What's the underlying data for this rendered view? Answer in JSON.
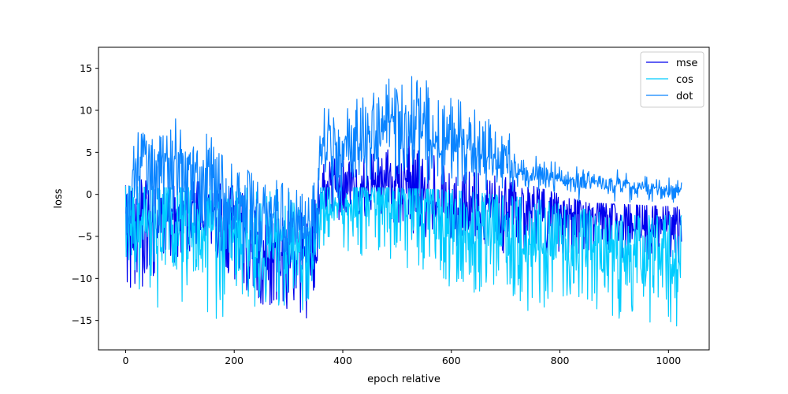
{
  "chart_data": {
    "type": "line",
    "title": "",
    "xlabel": "epoch relative",
    "ylabel": "loss",
    "xlim": [
      -50,
      1075
    ],
    "ylim": [
      -18.5,
      17.5
    ],
    "x_ticks": [
      0,
      200,
      400,
      600,
      800,
      1000
    ],
    "y_ticks": [
      -15,
      -10,
      -5,
      0,
      5,
      10,
      15
    ],
    "grid": false,
    "legend_position": "top-right",
    "x_max": 1024,
    "series": [
      {
        "name": "mse",
        "color": "#0000ee",
        "profile": [
          [
            0,
            -3.0,
            2.5,
            -11.0,
            2.0
          ],
          [
            30,
            -4.0,
            3.0,
            -11.5,
            2.0
          ],
          [
            60,
            -3.0,
            2.5,
            -9.0,
            1.5
          ],
          [
            150,
            -3.0,
            2.5,
            -7.0,
            1.5
          ],
          [
            200,
            -5.0,
            3.0,
            -10.0,
            1.0
          ],
          [
            250,
            -7.5,
            3.0,
            -13.0,
            -2.0
          ],
          [
            300,
            -7.5,
            3.0,
            -14.0,
            -2.0
          ],
          [
            315,
            -8.0,
            3.0,
            -16.5,
            -2.0
          ],
          [
            345,
            -7.0,
            3.0,
            -13.5,
            -2.0
          ],
          [
            360,
            1.0,
            2.0,
            -3.0,
            4.0
          ],
          [
            480,
            1.5,
            2.0,
            -3.0,
            5.0
          ],
          [
            500,
            1.0,
            2.5,
            -4.0,
            8.0
          ],
          [
            600,
            -1.5,
            2.5,
            -6.0,
            3.0
          ],
          [
            700,
            -2.0,
            2.5,
            -7.0,
            2.0
          ],
          [
            850,
            -2.5,
            2.0,
            -7.0,
            -1.0
          ],
          [
            1024,
            -3.5,
            2.0,
            -8.5,
            -1.5
          ]
        ]
      },
      {
        "name": "cos",
        "color": "#00ccff",
        "profile": [
          [
            0,
            -3.5,
            3.0,
            -10.0,
            1.0
          ],
          [
            50,
            -3.0,
            3.5,
            -13.5,
            0.8
          ],
          [
            200,
            -5.0,
            4.0,
            -15.5,
            0.8
          ],
          [
            340,
            -8.0,
            3.0,
            -14.5,
            0.5
          ],
          [
            360,
            -1.5,
            2.0,
            -6.0,
            0.8
          ],
          [
            480,
            -1.0,
            2.5,
            -8.0,
            0.8
          ],
          [
            600,
            -3.0,
            3.5,
            -11.0,
            0.5
          ],
          [
            750,
            -6.0,
            3.5,
            -14.0,
            -0.5
          ],
          [
            900,
            -7.0,
            3.0,
            -15.5,
            -2.5
          ],
          [
            1024,
            -7.0,
            3.0,
            -16.5,
            -2.5
          ]
        ]
      },
      {
        "name": "dot",
        "color": "#0a84ff",
        "profile": [
          [
            0,
            -1.5,
            2.0,
            -6.0,
            2.8
          ],
          [
            30,
            3.5,
            2.5,
            -4.0,
            8.8
          ],
          [
            120,
            4.0,
            2.5,
            -4.0,
            9.8
          ],
          [
            200,
            -1.0,
            2.5,
            -8.0,
            4.0
          ],
          [
            300,
            -3.0,
            2.0,
            -9.0,
            1.0
          ],
          [
            350,
            -4.0,
            2.0,
            -10.0,
            1.5
          ],
          [
            360,
            5.5,
            2.5,
            -2.0,
            12.5
          ],
          [
            470,
            6.0,
            2.5,
            -2.0,
            12.0
          ],
          [
            480,
            10.0,
            2.5,
            2.0,
            15.8
          ],
          [
            540,
            8.0,
            2.5,
            0.0,
            14.0
          ],
          [
            700,
            4.0,
            1.8,
            -1.0,
            8.5
          ],
          [
            720,
            2.5,
            0.7,
            0.5,
            5.0
          ],
          [
            850,
            1.5,
            0.6,
            -1.0,
            3.5
          ],
          [
            1024,
            0.3,
            0.5,
            -1.0,
            1.8
          ]
        ]
      }
    ]
  }
}
